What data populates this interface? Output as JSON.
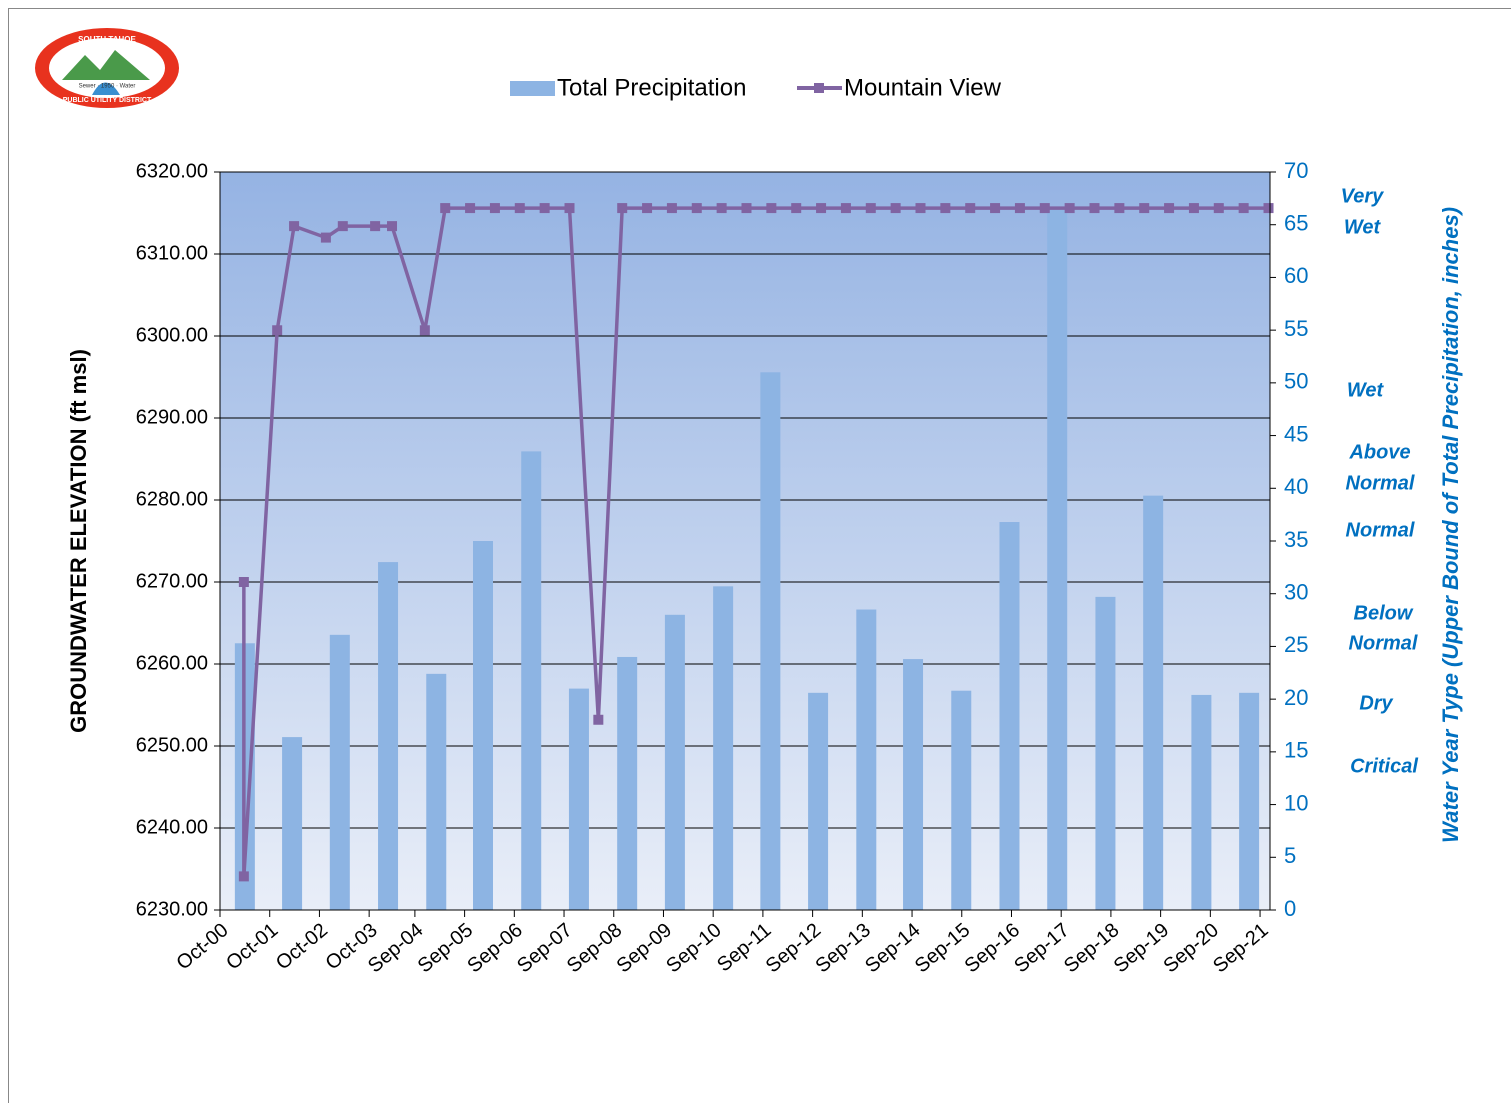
{
  "chart_data": {
    "type": "combo",
    "logo": {
      "top": "SOUTH TAHOE",
      "middle": "Sewer · 1950 · Water",
      "bottom": "PUBLIC UTILITY DISTRICT"
    },
    "y_label": "GROUNDWATER ELEVATION (ft msl)",
    "y2_label": "Water Year Type (Upper Bound of Total Precipitation, inches)",
    "annotations": [
      [
        "Very",
        "Wet"
      ],
      [
        "Wet"
      ],
      [
        "Above",
        "Normal"
      ],
      [
        "Normal"
      ],
      [
        "Below",
        "Normal"
      ],
      [
        "Dry"
      ],
      [
        "Critical"
      ]
    ],
    "xlim": [
      2000.75,
      2021.87
    ],
    "xticks": [
      {
        "value": 2000.75,
        "label": "Oct-00"
      },
      {
        "value": 2001.75,
        "label": "Oct-01"
      },
      {
        "value": 2002.75,
        "label": "Oct-02"
      },
      {
        "value": 2003.75,
        "label": "Oct-03"
      },
      {
        "value": 2004.67,
        "label": "Sep-04"
      },
      {
        "value": 2005.67,
        "label": "Sep-05"
      },
      {
        "value": 2006.67,
        "label": "Sep-06"
      },
      {
        "value": 2007.67,
        "label": "Sep-07"
      },
      {
        "value": 2008.67,
        "label": "Sep-08"
      },
      {
        "value": 2009.67,
        "label": "Sep-09"
      },
      {
        "value": 2010.67,
        "label": "Sep-10"
      },
      {
        "value": 2011.67,
        "label": "Sep-11"
      },
      {
        "value": 2012.67,
        "label": "Sep-12"
      },
      {
        "value": 2013.67,
        "label": "Sep-13"
      },
      {
        "value": 2014.67,
        "label": "Sep-14"
      },
      {
        "value": 2015.67,
        "label": "Sep-15"
      },
      {
        "value": 2016.67,
        "label": "Sep-16"
      },
      {
        "value": 2017.67,
        "label": "Sep-17"
      },
      {
        "value": 2018.67,
        "label": "Sep-18"
      },
      {
        "value": 2019.67,
        "label": "Sep-19"
      },
      {
        "value": 2020.67,
        "label": "Sep-20"
      },
      {
        "value": 2021.67,
        "label": "Sep-21"
      }
    ],
    "ylim": [
      6230,
      6320
    ],
    "yticks": [
      {
        "value": 6230,
        "label": "6230.00"
      },
      {
        "value": 6240,
        "label": "6240.00"
      },
      {
        "value": 6250,
        "label": "6250.00"
      },
      {
        "value": 6260,
        "label": "6260.00"
      },
      {
        "value": 6270,
        "label": "6270.00"
      },
      {
        "value": 6280,
        "label": "6280.00"
      },
      {
        "value": 6290,
        "label": "6290.00"
      },
      {
        "value": 6300,
        "label": "6300.00"
      },
      {
        "value": 6310,
        "label": "6310.00"
      },
      {
        "value": 6320,
        "label": "6320.00"
      }
    ],
    "y2lim": [
      0,
      70
    ],
    "y2ticks": [
      0,
      5,
      10,
      15,
      20,
      25,
      30,
      35,
      40,
      45,
      50,
      55,
      60,
      65,
      70
    ],
    "grid": true,
    "series": [
      {
        "name": "Total Precipitation",
        "type": "bar",
        "axis": "y2",
        "color": "#8db4e3",
        "x": [
          2001.25,
          2002.2,
          2003.16,
          2004.13,
          2005.1,
          2006.04,
          2007.01,
          2007.97,
          2008.94,
          2009.9,
          2010.87,
          2011.82,
          2012.78,
          2013.75,
          2014.69,
          2015.66,
          2016.63,
          2017.59,
          2018.56,
          2019.52,
          2020.49,
          2021.45
        ],
        "values": [
          25.3,
          16.4,
          26.1,
          33,
          22.4,
          35,
          43.5,
          21,
          24,
          28,
          30.7,
          51,
          20.6,
          28.5,
          23.8,
          20.8,
          36.8,
          66.5,
          29.7,
          39.3,
          20.4,
          20.6
        ]
      },
      {
        "name": "Mountain View",
        "type": "line",
        "color": "#8064a2",
        "x": [
          2001.23,
          2001.23,
          2001.9,
          2002.24,
          2002.88,
          2003.22,
          2003.87,
          2004.21,
          2004.87,
          2005.28,
          2005.78,
          2006.28,
          2006.78,
          2007.28,
          2007.78,
          2008.36,
          2008.84,
          2009.34,
          2009.84,
          2010.34,
          2010.84,
          2011.34,
          2011.84,
          2012.34,
          2012.84,
          2013.34,
          2013.84,
          2014.34,
          2014.84,
          2015.34,
          2015.84,
          2016.34,
          2016.84,
          2017.34,
          2017.84,
          2018.34,
          2018.84,
          2019.34,
          2019.84,
          2020.34,
          2020.84,
          2021.34,
          2021.84
        ],
        "values": [
          6270,
          6234.1,
          6300.7,
          6313.4,
          6312,
          6313.4,
          6313.4,
          6313.4,
          6300.7,
          6315.6,
          6315.6,
          6315.6,
          6315.6,
          6315.6,
          6315.6,
          6253.2,
          6315.6,
          6315.6,
          6315.6,
          6315.6,
          6315.6,
          6315.6,
          6315.6,
          6315.6,
          6315.6,
          6315.6,
          6315.6,
          6315.6,
          6315.6,
          6315.6,
          6315.6,
          6315.6,
          6315.6,
          6315.6,
          6315.6,
          6315.6,
          6315.6,
          6315.6,
          6315.6,
          6315.6,
          6315.6,
          6315.6,
          6315.6
        ]
      }
    ]
  }
}
